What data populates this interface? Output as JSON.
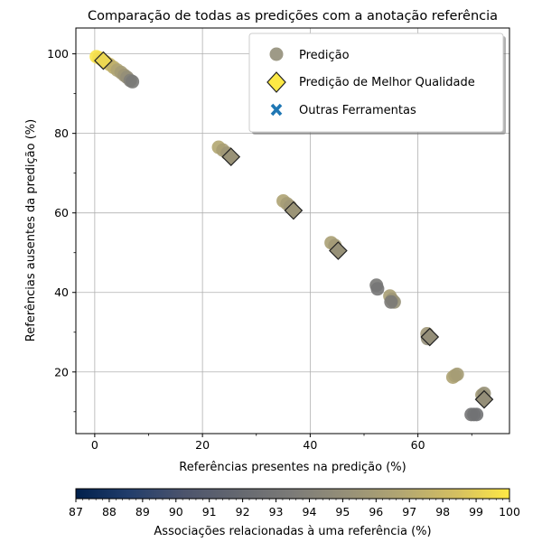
{
  "chart_data": {
    "type": "scatter",
    "title": "Comparação de todas as predições com a anotação referência",
    "xlabel": "Referências presentes na predição (%)",
    "ylabel": "Referências ausentes da predição  (%)",
    "xlim": [
      -3.5,
      77
    ],
    "ylim": [
      4.5,
      106.5
    ],
    "x_ticks": [
      "0",
      "20",
      "40",
      "60"
    ],
    "x_tick_values": [
      0,
      20,
      40,
      60
    ],
    "y_ticks": [
      "20",
      "40",
      "60",
      "80",
      "100"
    ],
    "y_tick_values": [
      20,
      40,
      60,
      80,
      100
    ],
    "grid": true,
    "legend_position": "top-right",
    "legend": [
      {
        "label": "Predição",
        "marker": "circle"
      },
      {
        "label": "Predição de Melhor Qualidade",
        "marker": "diamond"
      },
      {
        "label": "Outras Ferramentas",
        "marker": "x"
      }
    ],
    "colorbar": {
      "label": "Associações relacionadas à uma referência (%)",
      "min": 87,
      "max": 100,
      "ticks": [
        "87",
        "88",
        "89",
        "90",
        "91",
        "92",
        "93",
        "94",
        "95",
        "96",
        "97",
        "98",
        "99",
        "100"
      ],
      "colormap": "cividis"
    },
    "series": [
      {
        "name": "Predição",
        "points": [
          {
            "x": 0.3,
            "y": 99.3,
            "c": 99.8
          },
          {
            "x": 0.8,
            "y": 99.0,
            "c": 99.6
          },
          {
            "x": 1.3,
            "y": 98.6,
            "c": 99.3
          },
          {
            "x": 2.0,
            "y": 98.0,
            "c": 98.8
          },
          {
            "x": 2.8,
            "y": 97.3,
            "c": 98.0
          },
          {
            "x": 3.5,
            "y": 96.6,
            "c": 97.3
          },
          {
            "x": 4.2,
            "y": 95.9,
            "c": 96.6
          },
          {
            "x": 4.9,
            "y": 95.3,
            "c": 96.0
          },
          {
            "x": 5.5,
            "y": 94.6,
            "c": 95.5
          },
          {
            "x": 6.0,
            "y": 94.1,
            "c": 95.0
          },
          {
            "x": 6.6,
            "y": 93.3,
            "c": 93.8
          },
          {
            "x": 7.0,
            "y": 93.0,
            "c": 93.3
          },
          {
            "x": 23.0,
            "y": 76.5,
            "c": 96.8
          },
          {
            "x": 23.8,
            "y": 75.8,
            "c": 96.2
          },
          {
            "x": 24.6,
            "y": 75.0,
            "c": 95.6
          },
          {
            "x": 35.0,
            "y": 63.0,
            "c": 96.5
          },
          {
            "x": 35.7,
            "y": 62.3,
            "c": 96.0
          },
          {
            "x": 36.3,
            "y": 61.6,
            "c": 95.6
          },
          {
            "x": 43.9,
            "y": 52.5,
            "c": 96.3
          },
          {
            "x": 44.6,
            "y": 51.8,
            "c": 95.8
          },
          {
            "x": 52.3,
            "y": 41.8,
            "c": 93.2
          },
          {
            "x": 52.5,
            "y": 40.9,
            "c": 93.0
          },
          {
            "x": 54.8,
            "y": 39.1,
            "c": 96.2
          },
          {
            "x": 55.2,
            "y": 38.2,
            "c": 95.5
          },
          {
            "x": 55.6,
            "y": 37.6,
            "c": 95.2
          },
          {
            "x": 55.0,
            "y": 37.6,
            "c": 93.4
          },
          {
            "x": 61.7,
            "y": 29.6,
            "c": 95.6
          },
          {
            "x": 61.8,
            "y": 28.4,
            "c": 95.0
          },
          {
            "x": 66.5,
            "y": 18.7,
            "c": 96.5
          },
          {
            "x": 66.9,
            "y": 19.1,
            "c": 96.3
          },
          {
            "x": 67.3,
            "y": 19.4,
            "c": 96.0
          },
          {
            "x": 69.9,
            "y": 9.3,
            "c": 92.9
          },
          {
            "x": 70.4,
            "y": 9.3,
            "c": 92.8
          },
          {
            "x": 70.9,
            "y": 9.3,
            "c": 92.7
          },
          {
            "x": 71.9,
            "y": 14.2,
            "c": 95.7
          },
          {
            "x": 72.3,
            "y": 14.6,
            "c": 95.2
          }
        ]
      },
      {
        "name": "Predição de Melhor Qualidade",
        "points": [
          {
            "x": 1.6,
            "y": 98.3,
            "c": 99.3
          },
          {
            "x": 25.3,
            "y": 74.1,
            "c": 95.3
          },
          {
            "x": 36.9,
            "y": 60.6,
            "c": 95.4
          },
          {
            "x": 45.2,
            "y": 50.5,
            "c": 95.2
          },
          {
            "x": 62.2,
            "y": 28.8,
            "c": 95.0
          },
          {
            "x": 72.3,
            "y": 13.1,
            "c": 95.0
          }
        ]
      },
      {
        "name": "Outras Ferramentas",
        "points": []
      }
    ]
  }
}
